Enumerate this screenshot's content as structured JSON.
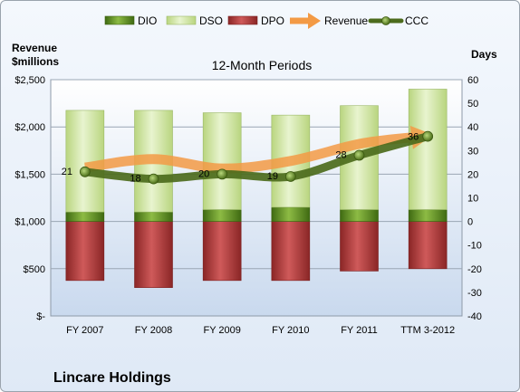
{
  "chart_data": {
    "type": "bar",
    "title": "12-Month Periods",
    "company": "Lincare Holdings",
    "left_axis_title_line1": "Revenue",
    "left_axis_title_line2": "$millions",
    "right_axis_title": "Days",
    "categories": [
      "FY 2007",
      "FY 2008",
      "FY 2009",
      "FY 2010",
      "FY 2011",
      "TTM 3-2012"
    ],
    "left_ticks": [
      "$-",
      "$500",
      "$1,000",
      "$1,500",
      "$2,000",
      "$2,500"
    ],
    "right_ticks": [
      "-40",
      "-30",
      "-20",
      "-10",
      "0",
      "10",
      "20",
      "30",
      "40",
      "50",
      "60"
    ],
    "left_ylim": [
      0,
      2500
    ],
    "right_ylim": [
      -40,
      60
    ],
    "series": [
      {
        "name": "DIO",
        "axis": "right",
        "color": "#4f7f1a",
        "values": [
          4,
          4,
          5,
          6,
          5,
          5
        ]
      },
      {
        "name": "DSO",
        "axis": "right",
        "color": "#d3e7a6",
        "values": [
          43,
          43,
          41,
          39,
          44,
          51
        ]
      },
      {
        "name": "DPO",
        "axis": "right",
        "color": "#a93a3a",
        "values": [
          -25,
          -28,
          -25,
          -25,
          -21,
          -20
        ]
      },
      {
        "name": "Revenue",
        "axis": "left",
        "color": "#f39a45",
        "values": [
          1570,
          1660,
          1560,
          1640,
          1820,
          1910
        ]
      },
      {
        "name": "CCC",
        "axis": "right",
        "color": "#4c6b1c",
        "values": [
          21,
          18,
          20,
          19,
          28,
          36
        ]
      }
    ],
    "ccc_labels": [
      "21",
      "18",
      "20",
      "19",
      "28",
      "36"
    ],
    "grid": true,
    "legend_position": "top"
  }
}
